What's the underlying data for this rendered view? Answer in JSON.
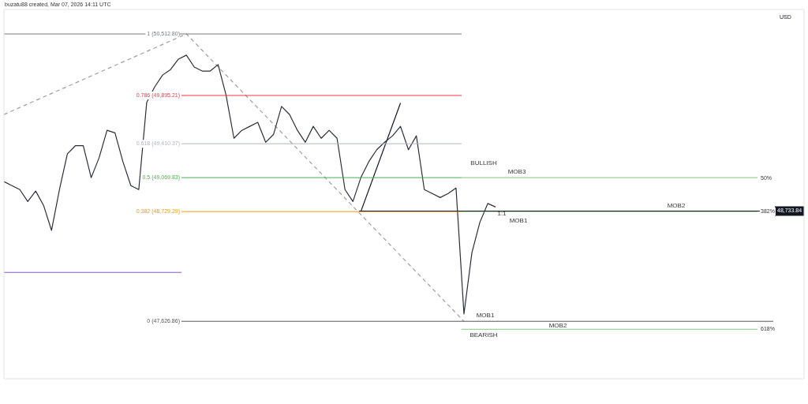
{
  "chart_data": {
    "type": "line",
    "categories": [
      null,
      null,
      null,
      null,
      null,
      null,
      null,
      null,
      null,
      null,
      null,
      null,
      null,
      null,
      null,
      null,
      null,
      null,
      null,
      null,
      null,
      null,
      null,
      null,
      null,
      null,
      null,
      null,
      null,
      null,
      null,
      null,
      null,
      null,
      null,
      null,
      null,
      null,
      null,
      null,
      null,
      null,
      null,
      null,
      null,
      null,
      null,
      null,
      null,
      null,
      null,
      null,
      null,
      null,
      null,
      null,
      null,
      null,
      null,
      null,
      null,
      null,
      null,
      null,
      null,
      null,
      null,
      null,
      null,
      null,
      null,
      null,
      null,
      null,
      null,
      null,
      null,
      null,
      null,
      null,
      null,
      null,
      null,
      null,
      null,
      null,
      null,
      null,
      null,
      null,
      null,
      null,
      null,
      null,
      null,
      null,
      null,
      null
    ],
    "series": [
      {
        "color": "#2a2e39",
        "values": [
          49030,
          48990,
          48950,
          48830,
          48935,
          48790,
          48540,
          48950,
          49310,
          49390,
          49390,
          49070,
          49270,
          49545,
          49520,
          49230,
          48990,
          48950,
          49825,
          49980,
          50100,
          50155,
          50260,
          50300,
          50180,
          50140,
          50140,
          50205,
          49900,
          49465,
          49545,
          49585,
          49625,
          49425,
          49505,
          49785,
          49705,
          49545,
          49425,
          49585,
          49465,
          49545,
          49465,
          48950,
          48830,
          49070,
          49230,
          49350,
          49425,
          49490,
          49585,
          49350,
          49490,
          48950,
          48910,
          48870,
          48910,
          48965,
          47700,
          48315,
          48620,
          48810,
          48775,
          null,
          null,
          null,
          null,
          null,
          null,
          null,
          null,
          null,
          null,
          null,
          null,
          null,
          null,
          null,
          null,
          null,
          null,
          null,
          null,
          null,
          null,
          null,
          null,
          null,
          null,
          null,
          null,
          null,
          null,
          null,
          null,
          null,
          null,
          null
        ]
      },
      {
        "color": "#9e9e9e",
        "line_style": "dashed",
        "values": [
          49704,
          null,
          null,
          null,
          null,
          null,
          null,
          null,
          null,
          null,
          null,
          null,
          null,
          null,
          null,
          null,
          null,
          null,
          null,
          null,
          null,
          null,
          null,
          50513,
          null,
          null,
          null,
          null,
          null,
          null,
          null,
          null,
          null,
          null,
          null,
          null,
          null,
          null,
          null,
          null,
          null,
          null,
          null,
          null,
          null,
          null,
          null,
          null,
          null,
          null,
          null,
          null,
          null,
          null,
          null,
          null,
          null,
          null,
          47627,
          null,
          null,
          null,
          null,
          null,
          null,
          null,
          null,
          null,
          null,
          null,
          null,
          null,
          null,
          null,
          null,
          null,
          null,
          null,
          null,
          null,
          null,
          null,
          null,
          null,
          null,
          null,
          null,
          null,
          null,
          null,
          null,
          null,
          null,
          null,
          null,
          null,
          null,
          null
        ]
      },
      {
        "color": "#131722",
        "values": [
          null,
          null,
          null,
          null,
          null,
          null,
          null,
          null,
          null,
          null,
          null,
          null,
          null,
          null,
          null,
          null,
          null,
          null,
          null,
          null,
          null,
          null,
          null,
          null,
          null,
          null,
          null,
          null,
          null,
          null,
          null,
          null,
          null,
          null,
          null,
          null,
          null,
          null,
          null,
          null,
          null,
          null,
          null,
          null,
          null,
          48729,
          null,
          null,
          null,
          null,
          49820,
          null,
          null,
          null,
          null,
          null,
          null,
          null,
          null,
          null,
          null,
          null,
          null,
          null,
          null,
          null,
          null,
          null,
          null,
          null,
          null,
          null,
          null,
          null,
          null,
          null,
          null,
          null,
          null,
          null,
          null,
          null,
          null,
          null,
          null,
          null,
          null,
          null,
          null,
          null,
          null,
          null,
          null,
          null,
          null,
          null,
          null,
          null
        ]
      }
    ],
    "ylim": [
      47050,
      50735
    ],
    "tick_labels": false,
    "grid": false,
    "legend": false,
    "marker": "none",
    "line_style": "solid",
    "ylabel": "USD",
    "ref_lines": [
      {
        "axis": "y",
        "value": 50512.8,
        "label": "1 (50,512.80)",
        "color": "#787b86"
      },
      {
        "axis": "y",
        "value": 49895.21,
        "label": "0.786 (49,895.21)",
        "color": "#f23645"
      },
      {
        "axis": "y",
        "value": 49410.37,
        "label": "0.618 (49,410.37)",
        "color": "#b2b5be"
      },
      {
        "axis": "y",
        "value": 49069.83,
        "label": "0.5 (49,069.83)",
        "color": "#4caf50"
      },
      {
        "axis": "y",
        "value": 48729.29,
        "label": "0.382 (48,729.29)",
        "color": "#ff9800"
      },
      {
        "axis": "y",
        "value": 47626.86,
        "label": "0 (47,626.86)",
        "color": "#555555"
      },
      {
        "axis": "y",
        "value": 48118,
        "label": null,
        "color": "#7e57c2"
      },
      {
        "axis": "y",
        "value": 49069.83,
        "label": null,
        "color": "#81c784"
      },
      {
        "axis": "y",
        "value": 48729.29,
        "label": null,
        "color": "#81c784"
      },
      {
        "axis": "y",
        "value": 47547,
        "label": null,
        "color": "#81c784"
      },
      {
        "axis": "y",
        "value": 48733.84,
        "label": "48,733.84",
        "color": "#131722"
      }
    ],
    "annotations": [
      "BULLISH",
      "MOB3",
      "MOB2",
      "1:1",
      "MOB1",
      "MOB1",
      "MOB2",
      "BEARISH",
      "buzatu88 created, Mar 07, 2026 14:11 UTC",
      "50%",
      "382%",
      "618%"
    ]
  }
}
